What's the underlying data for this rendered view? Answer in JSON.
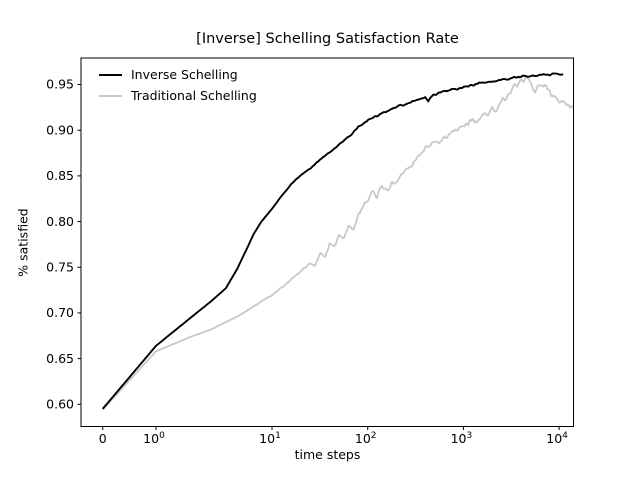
{
  "chart_data": {
    "type": "line",
    "title": "[Inverse] Schelling Satisfaction Rate",
    "xlabel": "time steps",
    "ylabel": "% satisfied",
    "x_scale": "symlog",
    "grid": false,
    "legend_position": "upper left",
    "axis_color": "#000000",
    "background_color": "#ffffff",
    "ylim": [
      0.576,
      0.979
    ],
    "xlim_ticks": [
      0,
      10000
    ],
    "x_ticks": [
      {
        "text": "0",
        "value": 0
      },
      {
        "text": "10^0",
        "value": 1
      },
      {
        "text": "10^1",
        "value": 10
      },
      {
        "text": "10^2",
        "value": 100
      },
      {
        "text": "10^3",
        "value": 1000
      },
      {
        "text": "10^4",
        "value": 10000
      }
    ],
    "y_ticks": [
      {
        "text": "0.60",
        "value": 0.6
      },
      {
        "text": "0.65",
        "value": 0.65
      },
      {
        "text": "0.70",
        "value": 0.7
      },
      {
        "text": "0.75",
        "value": 0.75
      },
      {
        "text": "0.80",
        "value": 0.8
      },
      {
        "text": "0.85",
        "value": 0.85
      },
      {
        "text": "0.90",
        "value": 0.9
      },
      {
        "text": "0.95",
        "value": 0.95
      }
    ],
    "series": [
      {
        "name": "Inverse Schelling",
        "color": "#000000",
        "width": 1.9,
        "noise": {
          "amp": 0.0013,
          "ramp_log10": [
            0.9,
            2.2
          ],
          "seed": 7
        },
        "points": [
          [
            0,
            0.595
          ],
          [
            1,
            0.664
          ],
          [
            2,
            0.695
          ],
          [
            3,
            0.713
          ],
          [
            4,
            0.727
          ],
          [
            5,
            0.748
          ],
          [
            6,
            0.769
          ],
          [
            7,
            0.787
          ],
          [
            8,
            0.799
          ],
          [
            9,
            0.807
          ],
          [
            10,
            0.814
          ],
          [
            12.5,
            0.8275
          ],
          [
            16,
            0.8415
          ],
          [
            20,
            0.851
          ],
          [
            25,
            0.858
          ],
          [
            32,
            0.868
          ],
          [
            40,
            0.876
          ],
          [
            50,
            0.884
          ],
          [
            63,
            0.8925
          ],
          [
            80,
            0.9035
          ],
          [
            100,
            0.911
          ],
          [
            125,
            0.916
          ],
          [
            160,
            0.921
          ],
          [
            200,
            0.9255
          ],
          [
            250,
            0.9285
          ],
          [
            320,
            0.9325
          ],
          [
            400,
            0.9355
          ],
          [
            430,
            0.9315
          ],
          [
            460,
            0.9365
          ],
          [
            500,
            0.939
          ],
          [
            630,
            0.9425
          ],
          [
            800,
            0.9445
          ],
          [
            1000,
            0.947
          ],
          [
            1250,
            0.9495
          ],
          [
            1600,
            0.952
          ],
          [
            2000,
            0.9535
          ],
          [
            2500,
            0.955
          ],
          [
            3200,
            0.957
          ],
          [
            4000,
            0.9585
          ],
          [
            5000,
            0.9595
          ],
          [
            6300,
            0.9605
          ],
          [
            8000,
            0.961
          ],
          [
            10000,
            0.9615
          ],
          [
            11000,
            0.9615
          ]
        ]
      },
      {
        "name": "Traditional Schelling",
        "color": "#c8c8c8",
        "width": 1.8,
        "noise": {
          "amp": 0.0038,
          "ramp_log10": [
            0.7,
            2.8
          ],
          "seed": 13
        },
        "points": [
          [
            0,
            0.594
          ],
          [
            1,
            0.658
          ],
          [
            2,
            0.674
          ],
          [
            3,
            0.682
          ],
          [
            4,
            0.69
          ],
          [
            5,
            0.696
          ],
          [
            6,
            0.702
          ],
          [
            7,
            0.7075
          ],
          [
            8,
            0.712
          ],
          [
            9,
            0.716
          ],
          [
            10,
            0.7195
          ],
          [
            12.5,
            0.7275
          ],
          [
            16,
            0.737
          ],
          [
            20,
            0.7455
          ],
          [
            25,
            0.755
          ],
          [
            28,
            0.752
          ],
          [
            32,
            0.7655
          ],
          [
            36,
            0.762
          ],
          [
            40,
            0.7755
          ],
          [
            45,
            0.772
          ],
          [
            50,
            0.7845
          ],
          [
            56,
            0.7805
          ],
          [
            63,
            0.795
          ],
          [
            71,
            0.791
          ],
          [
            80,
            0.8085
          ],
          [
            90,
            0.8165
          ],
          [
            100,
            0.8235
          ],
          [
            112,
            0.8335
          ],
          [
            125,
            0.8275
          ],
          [
            140,
            0.8385
          ],
          [
            160,
            0.8335
          ],
          [
            180,
            0.8425
          ],
          [
            200,
            0.8435
          ],
          [
            225,
            0.851
          ],
          [
            250,
            0.8575
          ],
          [
            280,
            0.8605
          ],
          [
            320,
            0.869
          ],
          [
            360,
            0.8755
          ],
          [
            400,
            0.8805
          ],
          [
            450,
            0.8855
          ],
          [
            500,
            0.8865
          ],
          [
            560,
            0.884
          ],
          [
            630,
            0.8905
          ],
          [
            710,
            0.894
          ],
          [
            800,
            0.898
          ],
          [
            900,
            0.9005
          ],
          [
            1000,
            0.9035
          ],
          [
            1120,
            0.9085
          ],
          [
            1250,
            0.9115
          ],
          [
            1400,
            0.909
          ],
          [
            1600,
            0.9185
          ],
          [
            1800,
            0.9155
          ],
          [
            2000,
            0.925
          ],
          [
            2240,
            0.9215
          ],
          [
            2500,
            0.9325
          ],
          [
            2800,
            0.9365
          ],
          [
            3200,
            0.9445
          ],
          [
            3550,
            0.9495
          ],
          [
            4000,
            0.9525
          ],
          [
            4500,
            0.958
          ],
          [
            5000,
            0.949
          ],
          [
            5600,
            0.9425
          ],
          [
            6300,
            0.9475
          ],
          [
            7100,
            0.951
          ],
          [
            8000,
            0.9435
          ],
          [
            9000,
            0.9345
          ],
          [
            10000,
            0.9305
          ],
          [
            11200,
            0.934
          ],
          [
            12600,
            0.9275
          ],
          [
            14000,
            0.9255
          ]
        ]
      }
    ]
  }
}
